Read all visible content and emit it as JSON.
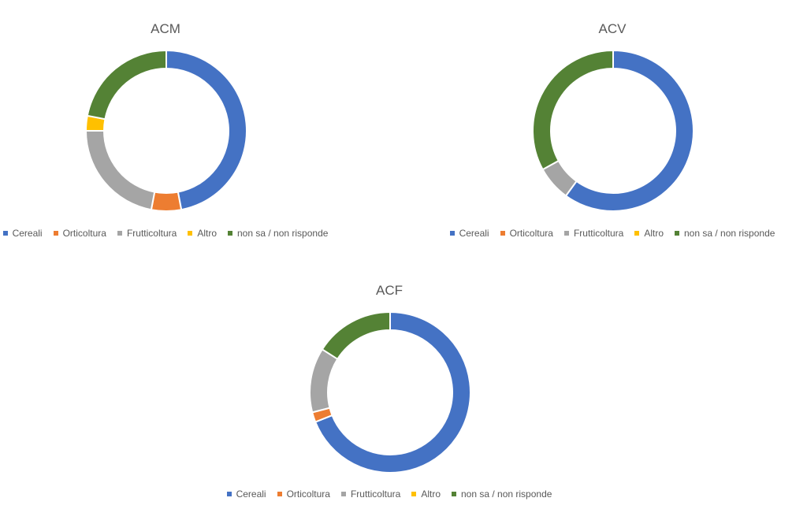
{
  "legend_labels": [
    "Cereali",
    "Orticoltura",
    "Frutticoltura",
    "Altro",
    "non sa / non risponde"
  ],
  "colors": [
    "#4472c4",
    "#ed7d31",
    "#a5a5a5",
    "#ffc000",
    "#548235"
  ],
  "chart_data": [
    {
      "type": "pie",
      "subtype": "doughnut",
      "title": "ACM",
      "categories": [
        "Cereali",
        "Orticoltura",
        "Frutticoltura",
        "Altro",
        "non sa / non risponde"
      ],
      "values": [
        47,
        6,
        22,
        3,
        22
      ]
    },
    {
      "type": "pie",
      "subtype": "doughnut",
      "title": "ACV",
      "categories": [
        "Cereali",
        "Orticoltura",
        "Frutticoltura",
        "Altro",
        "non sa / non risponde"
      ],
      "values": [
        60,
        0,
        7,
        0,
        33
      ]
    },
    {
      "type": "pie",
      "subtype": "doughnut",
      "title": "ACF",
      "categories": [
        "Cereali",
        "Orticoltura",
        "Frutticoltura",
        "Altro",
        "non sa / non risponde"
      ],
      "values": [
        69,
        2,
        13,
        0,
        16
      ]
    }
  ]
}
